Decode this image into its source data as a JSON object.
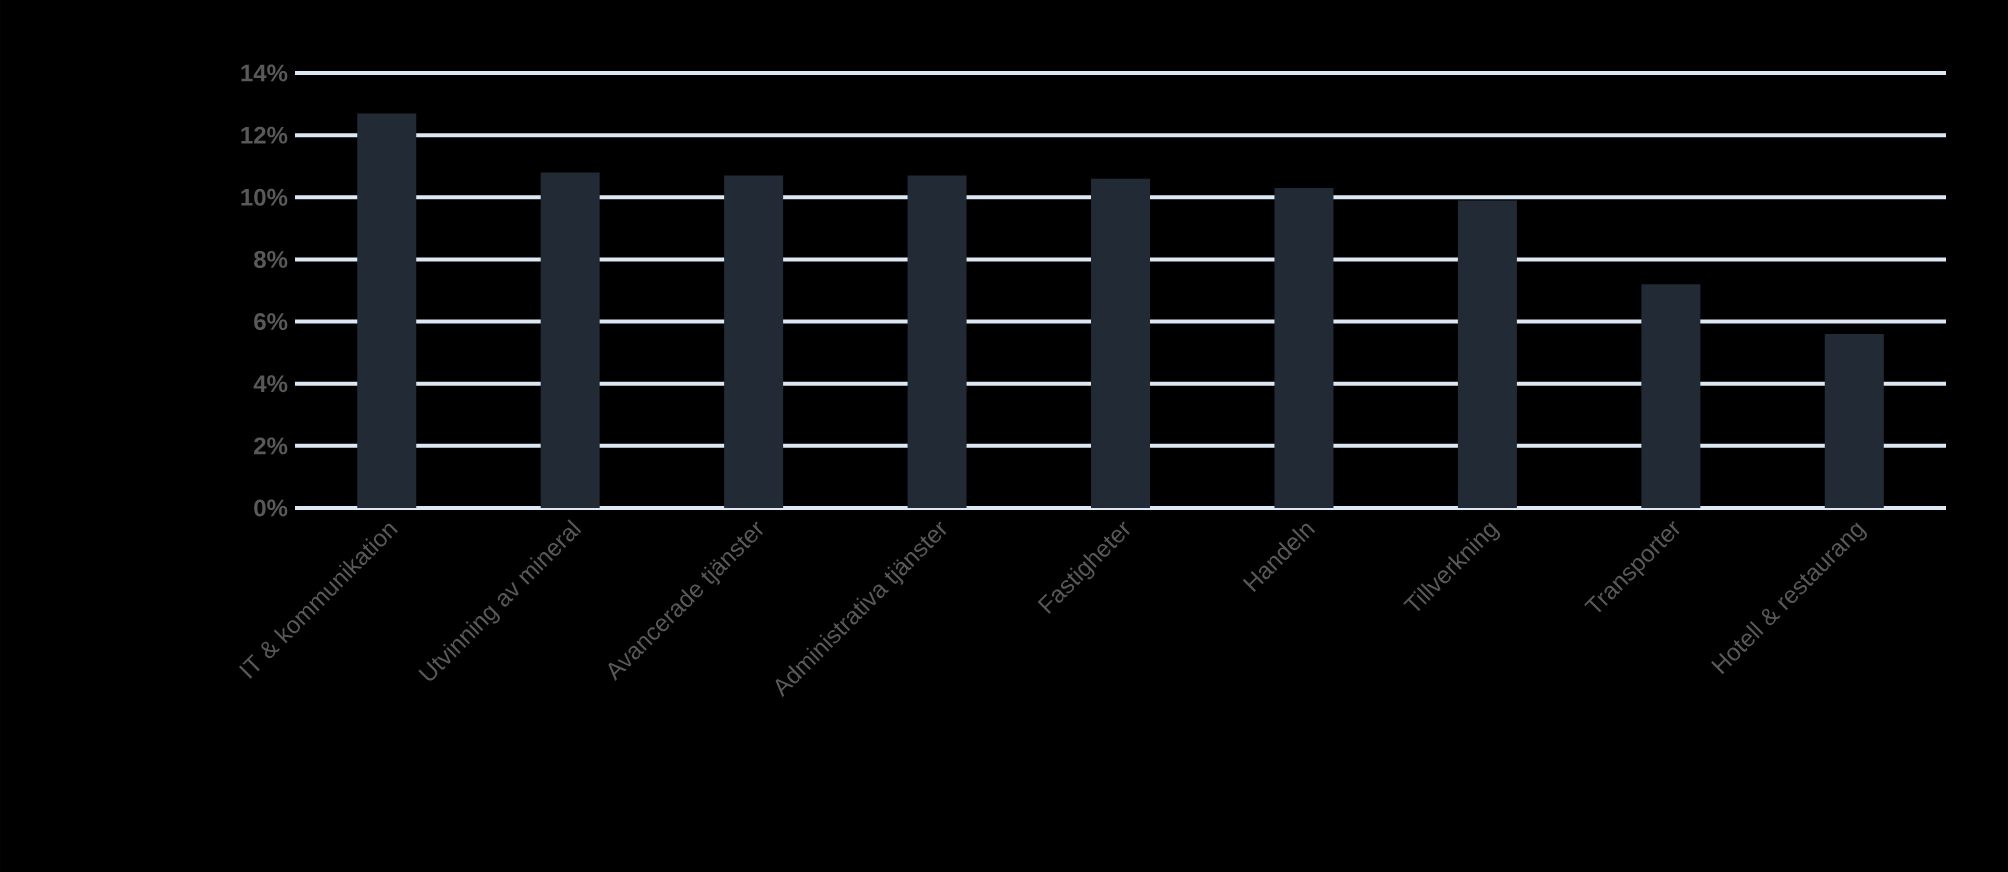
{
  "chart_data": {
    "type": "bar",
    "categories": [
      "IT & kommunikation",
      "Utvinning av mineral",
      "Avancerade tjänster",
      "Administrativa tjänster",
      "Fastigheter",
      "Handeln",
      "Tillverkning",
      "Transporter",
      "Hotell & restaurang"
    ],
    "values": [
      12.7,
      10.8,
      10.7,
      10.7,
      10.6,
      10.3,
      9.9,
      7.2,
      5.6
    ],
    "color": "#222a35",
    "ylim": [
      0,
      14
    ],
    "yticks": [
      {
        "value": 0,
        "label": "0%"
      },
      {
        "value": 2,
        "label": "2%"
      },
      {
        "value": 4,
        "label": "4%"
      },
      {
        "value": 6,
        "label": "6%"
      },
      {
        "value": 8,
        "label": "8%"
      },
      {
        "value": 10,
        "label": "10%"
      },
      {
        "value": 12,
        "label": "12%"
      },
      {
        "value": 14,
        "label": "14%"
      }
    ],
    "grid": "y"
  }
}
